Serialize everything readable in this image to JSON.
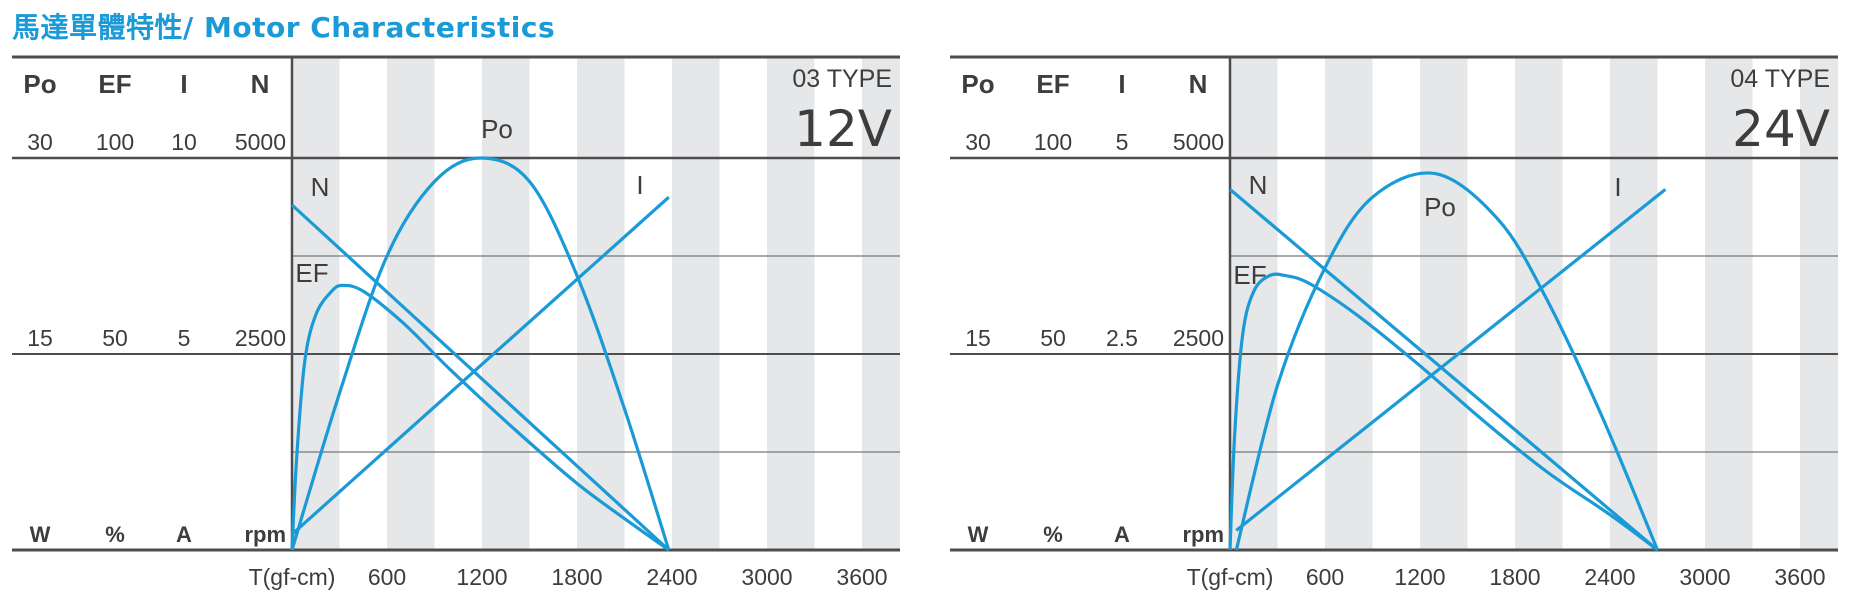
{
  "title": "馬達單體特性/ Motor Characteristics",
  "colors": {
    "curve": "#1a9ad6",
    "stripe": "#e6e7e9",
    "axis": "#4d4d4d",
    "text": "#3d3d3d",
    "title": "#1a9ad6"
  },
  "chart_data": [
    {
      "type": "line",
      "model": "03 TYPE",
      "voltage": "12V",
      "xlabel": "T(gf-cm)",
      "x_ticks": [
        "600",
        "1200",
        "1800",
        "2400",
        "3000",
        "3600"
      ],
      "xlim": [
        0,
        3900
      ],
      "axes": [
        {
          "name": "Po",
          "unit": "W",
          "ticks": [
            "30",
            "15"
          ]
        },
        {
          "name": "EF",
          "unit": "%",
          "ticks": [
            "100",
            "50"
          ]
        },
        {
          "name": "I",
          "unit": "A",
          "ticks": [
            "10",
            "5"
          ]
        },
        {
          "name": "N",
          "unit": "rpm",
          "ticks": [
            "5000",
            "2500"
          ]
        }
      ],
      "series": [
        {
          "name": "N",
          "x": [
            0,
            2380
          ],
          "y": [
            0.88,
            0.0
          ]
        },
        {
          "name": "I",
          "x": [
            0,
            2380
          ],
          "y": [
            0.04,
            0.9
          ]
        },
        {
          "name": "Po",
          "x": [
            0,
            300,
            600,
            900,
            1190,
            1500,
            1800,
            2100,
            2380
          ],
          "y": [
            0.0,
            0.4,
            0.75,
            0.94,
            1.0,
            0.94,
            0.7,
            0.36,
            0.0
          ]
        },
        {
          "name": "EF",
          "x": [
            0,
            30,
            80,
            150,
            250,
            320,
            450,
            700,
            1000,
            1400,
            1800,
            2100,
            2380
          ],
          "y": [
            0.0,
            0.24,
            0.48,
            0.6,
            0.66,
            0.675,
            0.66,
            0.58,
            0.46,
            0.31,
            0.17,
            0.08,
            0.0
          ]
        }
      ],
      "curve_labels": {
        "N": "N",
        "I": "I",
        "Po": "Po",
        "EF": "EF"
      }
    },
    {
      "type": "line",
      "model": "04 TYPE",
      "voltage": "24V",
      "xlabel": "T(gf-cm)",
      "x_ticks": [
        "600",
        "1200",
        "1800",
        "2400",
        "3000",
        "3600"
      ],
      "xlim": [
        0,
        3900
      ],
      "axes": [
        {
          "name": "Po",
          "unit": "W",
          "ticks": [
            "30",
            "15"
          ]
        },
        {
          "name": "EF",
          "unit": "%",
          "ticks": [
            "100",
            "50"
          ]
        },
        {
          "name": "I",
          "unit": "A",
          "ticks": [
            "5",
            "2.5"
          ]
        },
        {
          "name": "N",
          "unit": "rpm",
          "ticks": [
            "5000",
            "2500"
          ]
        }
      ],
      "series": [
        {
          "name": "N",
          "x": [
            0,
            2700
          ],
          "y": [
            0.92,
            0.0
          ]
        },
        {
          "name": "I",
          "x": [
            40,
            2750
          ],
          "y": [
            0.05,
            0.92
          ]
        },
        {
          "name": "Po",
          "x": [
            40,
            300,
            600,
            900,
            1300,
            1700,
            2000,
            2350,
            2700
          ],
          "y": [
            0.0,
            0.42,
            0.72,
            0.9,
            0.96,
            0.84,
            0.64,
            0.34,
            0.0
          ]
        },
        {
          "name": "EF",
          "x": [
            0,
            30,
            80,
            150,
            250,
            350,
            500,
            800,
            1200,
            1600,
            2000,
            2400,
            2700
          ],
          "y": [
            0.0,
            0.3,
            0.55,
            0.66,
            0.7,
            0.7,
            0.68,
            0.6,
            0.47,
            0.33,
            0.2,
            0.09,
            0.0
          ]
        }
      ],
      "curve_labels": {
        "N": "N",
        "I": "I",
        "Po": "Po",
        "EF": "EF"
      }
    }
  ]
}
